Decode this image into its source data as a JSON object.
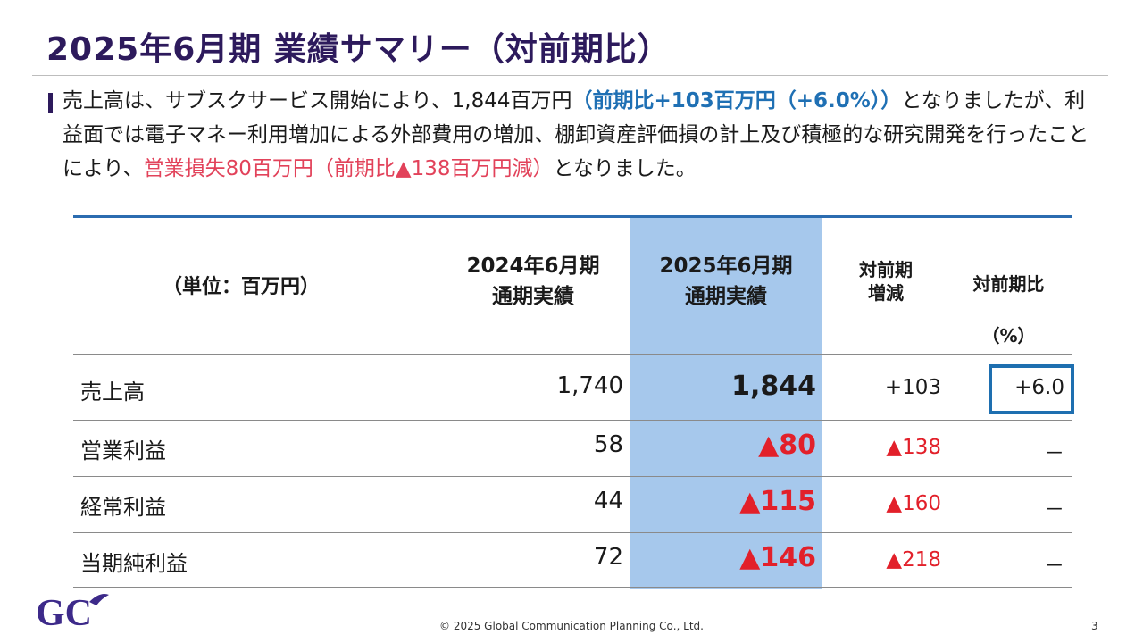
{
  "title": "2025年6月期 業績サマリー（対前期比）",
  "summary": {
    "part1": "売上高は、サブスクサービス開始により、1,844百万円",
    "part2": "（前期比+103百万円（+6.0%））",
    "part3": "となりましたが、利益面では電子マネー利用増加による外部費用の増加、棚卸資産評価損の計上及び積極的な研究開発を行ったことにより、",
    "part4": "営業損失80百万円（前期比▲138百万円減）",
    "part5": "となりました。"
  },
  "table": {
    "unit_label": "（単位：百万円）",
    "col_prev_line1": "2024年6月期",
    "col_prev_line2": "通期実績",
    "col_curr_line1": "2025年6月期",
    "col_curr_line2": "通期実績",
    "col_diff_line1": "対前期",
    "col_diff_line2": "増減",
    "col_ratio_line1": "対前期比",
    "col_ratio_line2": "（%）",
    "rows": [
      {
        "label": "売上高",
        "prev": "1,740",
        "curr": "1,844",
        "diff": "+103",
        "ratio": "+6.0"
      },
      {
        "label": "営業利益",
        "prev": "58",
        "curr": "▲80",
        "diff": "▲138",
        "ratio": "－"
      },
      {
        "label": "経常利益",
        "prev": "44",
        "curr": "▲115",
        "diff": "▲160",
        "ratio": "－"
      },
      {
        "label": "当期純利益",
        "prev": "72",
        "curr": "▲146",
        "diff": "▲218",
        "ratio": "－"
      }
    ]
  },
  "logo_text": "GC",
  "footer": "© 2025 Global Communication Planning Co., Ltd.",
  "page_number": "3",
  "colors": {
    "title": "#2d1a5c",
    "accent_blue": "#1f70b4",
    "accent_red": "#e2425a",
    "highlight_column": "#a6c8ec",
    "negative_value": "#e2202a"
  }
}
